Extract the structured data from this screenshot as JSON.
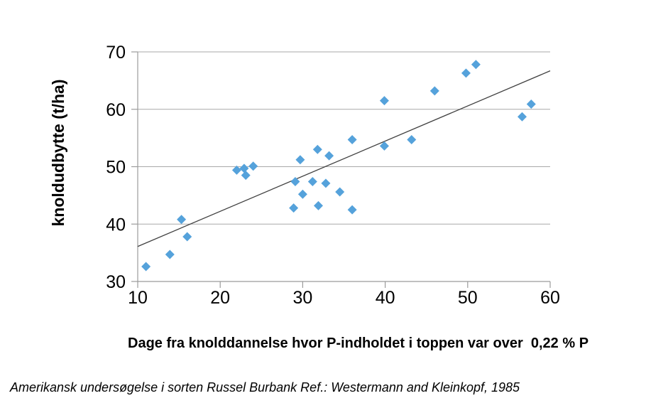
{
  "chart_data": {
    "type": "scatter",
    "title": "",
    "xlabel": "Dage fra knolddannelse hvor P-indholdet i toppen var over  0,22 % P",
    "ylabel": "knoldudbytte (t/ha)",
    "caption": "Amerikansk undersøgelse i sorten Russel Burbank Ref.: Westermann and Kleinkopf, 1985",
    "xlim": [
      10,
      60
    ],
    "ylim": [
      30,
      70
    ],
    "xticks": [
      10,
      20,
      30,
      40,
      50,
      60
    ],
    "yticks": [
      30,
      40,
      50,
      60,
      70
    ],
    "grid": "horizontal-only",
    "legend": "none",
    "marker": {
      "shape": "diamond",
      "size": 13
    },
    "points": [
      [
        11.0,
        32.6
      ],
      [
        13.9,
        34.7
      ],
      [
        15.3,
        40.8
      ],
      [
        16.0,
        37.8
      ],
      [
        22.0,
        49.4
      ],
      [
        22.9,
        49.7
      ],
      [
        23.1,
        48.5
      ],
      [
        24.0,
        50.1
      ],
      [
        28.9,
        42.8
      ],
      [
        29.1,
        47.4
      ],
      [
        29.7,
        51.2
      ],
      [
        30.0,
        45.2
      ],
      [
        31.2,
        47.4
      ],
      [
        31.8,
        53.0
      ],
      [
        31.9,
        43.2
      ],
      [
        32.8,
        47.1
      ],
      [
        33.2,
        51.9
      ],
      [
        34.5,
        45.6
      ],
      [
        36.0,
        42.5
      ],
      [
        36.0,
        54.7
      ],
      [
        39.9,
        53.6
      ],
      [
        39.9,
        61.5
      ],
      [
        43.2,
        54.7
      ],
      [
        46.0,
        63.2
      ],
      [
        49.8,
        66.3
      ],
      [
        51.0,
        67.8
      ],
      [
        56.6,
        58.7
      ],
      [
        57.7,
        60.9
      ]
    ],
    "trendline": {
      "start": {
        "x": 10,
        "y": 36.1
      },
      "end": {
        "x": 60,
        "y": 66.7
      }
    },
    "colors": {
      "marker": "#55A2DB",
      "grid": "#A9A9A9",
      "axis": "#9B9B9B",
      "trend": "#404040",
      "text": "#000000",
      "background": "#FFFFFF"
    }
  }
}
